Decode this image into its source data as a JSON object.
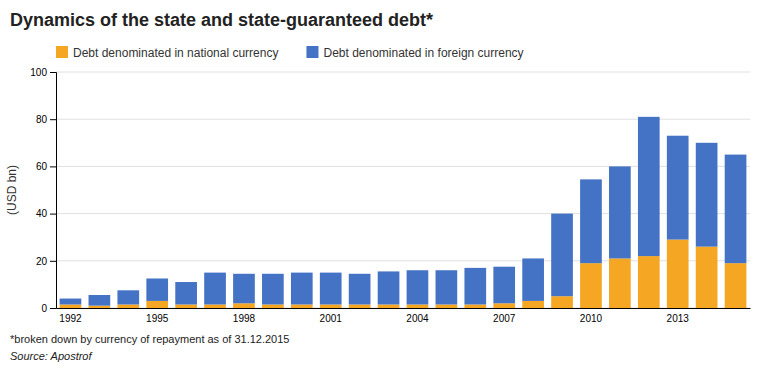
{
  "chart_data": {
    "type": "bar",
    "stacked": true,
    "title": "Dynamics of the state and state-guaranteed debt*",
    "subtitle": "*broken down by currency of repayment as of 31.12.2015",
    "source": "Source: Apostrof",
    "ylabel": "(USD bn)",
    "ylim": [
      0,
      100
    ],
    "yticks": [
      0,
      20,
      40,
      60,
      80,
      100
    ],
    "grid": true,
    "legend": "top-left",
    "categories": [
      "1992",
      null,
      null,
      "1995",
      null,
      null,
      "1998",
      null,
      null,
      "2001",
      null,
      null,
      "2004",
      null,
      null,
      "2007",
      null,
      null,
      "2010",
      null,
      null,
      "2013",
      null,
      null
    ],
    "series": [
      {
        "name": "Debt denominated in national currency",
        "color": "#f5a623",
        "values": [
          1.5,
          1.0,
          1.5,
          3.0,
          1.5,
          1.5,
          2.0,
          1.5,
          1.5,
          1.5,
          1.5,
          1.5,
          1.5,
          1.5,
          1.5,
          2.0,
          3.0,
          5.0,
          19.0,
          21.0,
          22.0,
          29.0,
          26.0,
          19.0
        ]
      },
      {
        "name": "Debt denominated in foreign currency",
        "color": "#4472c4",
        "values": [
          2.5,
          4.5,
          6.0,
          9.5,
          9.5,
          13.5,
          12.5,
          13.0,
          13.5,
          13.5,
          13.0,
          14.0,
          14.5,
          14.5,
          15.5,
          15.5,
          18.0,
          35.0,
          35.5,
          39.0,
          59.0,
          44.0,
          44.0,
          46.0
        ]
      }
    ]
  }
}
